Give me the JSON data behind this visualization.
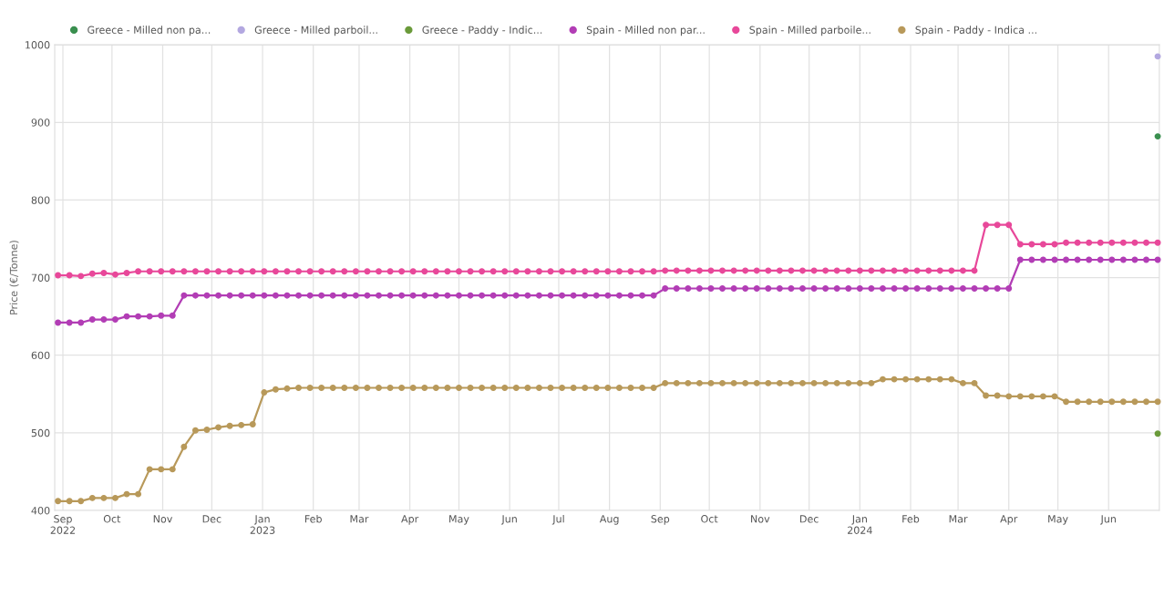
{
  "chart_data": {
    "type": "line",
    "ylabel": "Price (€/Tonne)",
    "x": [
      "2022-08-29",
      "2022-09-05",
      "2022-09-12",
      "2022-09-19",
      "2022-09-26",
      "2022-10-03",
      "2022-10-10",
      "2022-10-17",
      "2022-10-24",
      "2022-10-31",
      "2022-11-07",
      "2022-11-14",
      "2022-11-21",
      "2022-11-28",
      "2022-12-05",
      "2022-12-12",
      "2022-12-19",
      "2022-12-26",
      "2023-01-02",
      "2023-01-09",
      "2023-01-16",
      "2023-01-23",
      "2023-01-30",
      "2023-02-06",
      "2023-02-13",
      "2023-02-20",
      "2023-02-27",
      "2023-03-06",
      "2023-03-13",
      "2023-03-20",
      "2023-03-27",
      "2023-04-03",
      "2023-04-10",
      "2023-04-17",
      "2023-04-24",
      "2023-05-01",
      "2023-05-08",
      "2023-05-15",
      "2023-05-22",
      "2023-05-29",
      "2023-06-05",
      "2023-06-12",
      "2023-06-19",
      "2023-06-26",
      "2023-07-03",
      "2023-07-10",
      "2023-07-17",
      "2023-07-24",
      "2023-07-31",
      "2023-08-07",
      "2023-08-14",
      "2023-08-21",
      "2023-08-28",
      "2023-09-04",
      "2023-09-11",
      "2023-09-18",
      "2023-09-25",
      "2023-10-02",
      "2023-10-09",
      "2023-10-16",
      "2023-10-23",
      "2023-10-30",
      "2023-11-06",
      "2023-11-13",
      "2023-11-20",
      "2023-11-27",
      "2023-12-04",
      "2023-12-11",
      "2023-12-18",
      "2023-12-25",
      "2024-01-01",
      "2024-01-08",
      "2024-01-15",
      "2024-01-22",
      "2024-01-29",
      "2024-02-05",
      "2024-02-12",
      "2024-02-19",
      "2024-02-26",
      "2024-03-04",
      "2024-03-11",
      "2024-03-18",
      "2024-03-25",
      "2024-04-01",
      "2024-04-08",
      "2024-04-15",
      "2024-04-22",
      "2024-04-29",
      "2024-05-06",
      "2024-05-13",
      "2024-05-20",
      "2024-05-27",
      "2024-06-03",
      "2024-06-10",
      "2024-06-17",
      "2024-06-24",
      "2024-07-01"
    ],
    "series": [
      {
        "name": "Greece - Milled non pa...",
        "color": "#3a8f4f",
        "x": [
          "2024-07-01"
        ],
        "values": [
          882
        ]
      },
      {
        "name": "Greece - Milled parboil...",
        "color": "#b3a8e0",
        "x": [
          "2024-07-01"
        ],
        "values": [
          985
        ]
      },
      {
        "name": "Greece - Paddy - Indic...",
        "color": "#6a9a3a",
        "x": [
          "2024-07-01"
        ],
        "values": [
          499
        ]
      },
      {
        "name": "Spain - Milled non par...",
        "color": "#b23db5",
        "values": [
          642,
          642,
          642,
          646,
          646,
          646,
          650,
          650,
          650,
          651,
          651,
          677,
          677,
          677,
          677,
          677,
          677,
          677,
          677,
          677,
          677,
          677,
          677,
          677,
          677,
          677,
          677,
          677,
          677,
          677,
          677,
          677,
          677,
          677,
          677,
          677,
          677,
          677,
          677,
          677,
          677,
          677,
          677,
          677,
          677,
          677,
          677,
          677,
          677,
          677,
          677,
          677,
          677,
          686,
          686,
          686,
          686,
          686,
          686,
          686,
          686,
          686,
          686,
          686,
          686,
          686,
          686,
          686,
          686,
          686,
          686,
          686,
          686,
          686,
          686,
          686,
          686,
          686,
          686,
          686,
          686,
          686,
          686,
          686,
          723,
          723,
          723,
          723,
          723,
          723,
          723,
          723,
          723,
          723,
          723,
          723,
          723
        ]
      },
      {
        "name": "Spain - Milled parboile...",
        "color": "#e8489a",
        "values": [
          703,
          703,
          702,
          705,
          706,
          704,
          706,
          708,
          708,
          708,
          708,
          708,
          708,
          708,
          708,
          708,
          708,
          708,
          708,
          708,
          708,
          708,
          708,
          708,
          708,
          708,
          708,
          708,
          708,
          708,
          708,
          708,
          708,
          708,
          708,
          708,
          708,
          708,
          708,
          708,
          708,
          708,
          708,
          708,
          708,
          708,
          708,
          708,
          708,
          708,
          708,
          708,
          708,
          709,
          709,
          709,
          709,
          709,
          709,
          709,
          709,
          709,
          709,
          709,
          709,
          709,
          709,
          709,
          709,
          709,
          709,
          709,
          709,
          709,
          709,
          709,
          709,
          709,
          709,
          709,
          709,
          768,
          768,
          768,
          743,
          743,
          743,
          743,
          745,
          745,
          745,
          745,
          745,
          745,
          745,
          745,
          745
        ]
      },
      {
        "name": "Spain - Paddy - Indica ...",
        "color": "#b8995a",
        "values": [
          412,
          412,
          412,
          416,
          416,
          416,
          421,
          421,
          453,
          453,
          453,
          482,
          503,
          504,
          507,
          509,
          510,
          511,
          552,
          556,
          557,
          558,
          558,
          558,
          558,
          558,
          558,
          558,
          558,
          558,
          558,
          558,
          558,
          558,
          558,
          558,
          558,
          558,
          558,
          558,
          558,
          558,
          558,
          558,
          558,
          558,
          558,
          558,
          558,
          558,
          558,
          558,
          558,
          564,
          564,
          564,
          564,
          564,
          564,
          564,
          564,
          564,
          564,
          564,
          564,
          564,
          564,
          564,
          564,
          564,
          564,
          564,
          569,
          569,
          569,
          569,
          569,
          569,
          569,
          564,
          564,
          548,
          548,
          547,
          547,
          547,
          547,
          547,
          540,
          540,
          540,
          540,
          540,
          540,
          540,
          540,
          540
        ]
      }
    ],
    "xlim": [
      "2022-08-27",
      "2024-07-02"
    ],
    "xticks": [
      {
        "value": "2022-09-01",
        "label": "Sep\n2022"
      },
      {
        "value": "2022-10-01",
        "label": "Oct"
      },
      {
        "value": "2022-11-01",
        "label": "Nov"
      },
      {
        "value": "2022-12-01",
        "label": "Dec"
      },
      {
        "value": "2023-01-01",
        "label": "Jan\n2023"
      },
      {
        "value": "2023-02-01",
        "label": "Feb"
      },
      {
        "value": "2023-03-01",
        "label": "Mar"
      },
      {
        "value": "2023-04-01",
        "label": "Apr"
      },
      {
        "value": "2023-05-01",
        "label": "May"
      },
      {
        "value": "2023-06-01",
        "label": "Jun"
      },
      {
        "value": "2023-07-01",
        "label": "Jul"
      },
      {
        "value": "2023-08-01",
        "label": "Aug"
      },
      {
        "value": "2023-09-01",
        "label": "Sep"
      },
      {
        "value": "2023-10-01",
        "label": "Oct"
      },
      {
        "value": "2023-11-01",
        "label": "Nov"
      },
      {
        "value": "2023-12-01",
        "label": "Dec"
      },
      {
        "value": "2024-01-01",
        "label": "Jan\n2024"
      },
      {
        "value": "2024-02-01",
        "label": "Feb"
      },
      {
        "value": "2024-03-01",
        "label": "Mar"
      },
      {
        "value": "2024-04-01",
        "label": "Apr"
      },
      {
        "value": "2024-05-01",
        "label": "May"
      },
      {
        "value": "2024-06-01",
        "label": "Jun"
      }
    ],
    "ylim": [
      400,
      1000
    ],
    "yticks": [
      400,
      500,
      600,
      700,
      800,
      900,
      1000
    ],
    "grid": true,
    "legend": "top left",
    "marker": "circle",
    "line_style": "solid"
  }
}
